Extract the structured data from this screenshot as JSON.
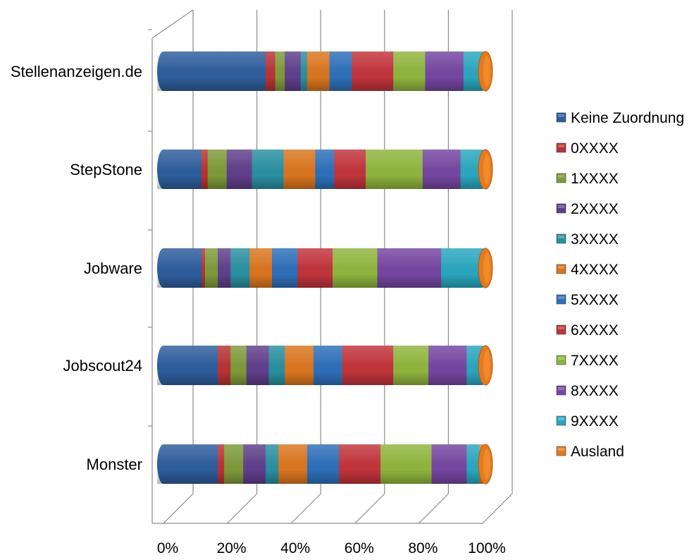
{
  "chart_data": {
    "type": "bar",
    "orientation": "horizontal",
    "stacked": "percent",
    "style": "3d-cylinder",
    "categories": [
      "Stellenanzeigen.de",
      "StepStone",
      "Jobware",
      "Jobscout24",
      "Monster"
    ],
    "series": [
      {
        "name": "Keine Zuordnung",
        "color": "#2e5d9c",
        "values": [
          32,
          12,
          12,
          17,
          17
        ]
      },
      {
        "name": "0XXXX",
        "color": "#b83233",
        "values": [
          3,
          2,
          1,
          4,
          2
        ]
      },
      {
        "name": "1XXXX",
        "color": "#7d9a3a",
        "values": [
          3,
          6,
          4,
          5,
          6
        ]
      },
      {
        "name": "2XXXX",
        "color": "#5f3f8a",
        "values": [
          5,
          8,
          4,
          7,
          7
        ]
      },
      {
        "name": "3XXXX",
        "color": "#2a8fa0",
        "values": [
          2,
          10,
          6,
          5,
          4
        ]
      },
      {
        "name": "4XXXX",
        "color": "#d9751f",
        "values": [
          7,
          10,
          7,
          9,
          9
        ]
      },
      {
        "name": "5XXXX",
        "color": "#2e6fb8",
        "values": [
          7,
          6,
          8,
          9,
          10
        ]
      },
      {
        "name": "6XXXX",
        "color": "#c0343b",
        "values": [
          13,
          10,
          11,
          16,
          13
        ]
      },
      {
        "name": "7XXXX",
        "color": "#8fb43d",
        "values": [
          10,
          18,
          14,
          11,
          16
        ]
      },
      {
        "name": "8XXXX",
        "color": "#7446a0",
        "values": [
          12,
          12,
          20,
          12,
          11
        ]
      },
      {
        "name": "9XXXX",
        "color": "#2aa6be",
        "values": [
          6,
          7,
          13,
          5,
          4
        ]
      },
      {
        "name": "Ausland",
        "color": "#e37a1f",
        "values": [
          0,
          0,
          0,
          0,
          1
        ]
      }
    ],
    "x_ticks": [
      "0%",
      "20%",
      "40%",
      "60%",
      "80%",
      "100%"
    ],
    "xlim": [
      0,
      100
    ],
    "grid": true,
    "legend": "right"
  }
}
